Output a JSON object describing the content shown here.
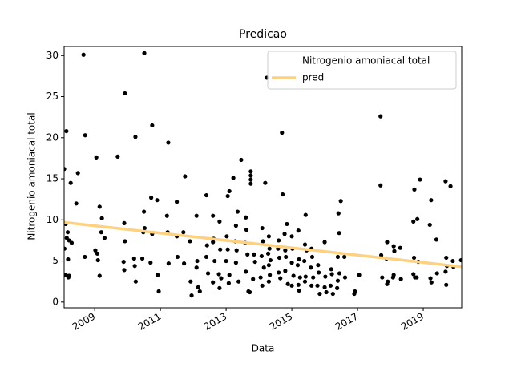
{
  "chart_data": {
    "type": "scatter",
    "title": "Predicao",
    "x_label": "Data",
    "y_label": "Nitrogenio amoniacal total",
    "xlim": [
      2008.07,
      2020.17
    ],
    "xticks": [
      2009,
      2011,
      2013,
      2015,
      2017,
      2019
    ],
    "ylim": [
      -0.7,
      31.1
    ],
    "yticks": [
      0,
      5,
      10,
      15,
      20,
      25,
      30
    ],
    "legend_position": "upper right",
    "series": [
      {
        "name": "Nitrogenio amoniacal total",
        "color": "#000000",
        "x": [
          2008.07,
          2008.14,
          2008.12,
          2008.18,
          2008.15,
          2008.22,
          2008.08,
          2008.12,
          2008.2,
          2008.22,
          2008.19,
          2008.3,
          2008.27,
          2008.44,
          2008.49,
          2008.66,
          2008.71,
          2008.7,
          2009.05,
          2009.02,
          2009.08,
          2009.1,
          2009.15,
          2009.15,
          2009.22,
          2009.2,
          2009.3,
          2009.7,
          2009.92,
          2009.9,
          2009.92,
          2009.88,
          2009.9,
          2010.24,
          2010.2,
          2010.22,
          2010.25,
          2010.51,
          2010.5,
          2010.52,
          2010.48,
          2010.45,
          2010.75,
          2010.72,
          2010.75,
          2010.7,
          2010.9,
          2010.92,
          2010.95,
          2011.24,
          2011.2,
          2011.22,
          2011.25,
          2011.5,
          2011.5,
          2011.52,
          2011.75,
          2011.7,
          2011.72,
          2011.9,
          2011.92,
          2011.95,
          2012.1,
          2012.12,
          2012.1,
          2012.15,
          2012.4,
          2012.42,
          2012.4,
          2012.45,
          2012.2,
          2012.6,
          2012.62,
          2012.6,
          2012.65,
          2012.6,
          2012.8,
          2012.82,
          2012.78,
          2012.85,
          2012.8,
          2013.05,
          2013.1,
          2013.02,
          2013.05,
          2013.0,
          2013.1,
          2013.08,
          2013.22,
          2013.46,
          2013.35,
          2013.3,
          2013.28,
          2013.32,
          2013.3,
          2013.38,
          2013.75,
          2013.75,
          2013.75,
          2013.75,
          2013.6,
          2013.62,
          2013.58,
          2013.65,
          2013.6,
          2013.68,
          2013.72,
          2013.85,
          2013.88,
          2013.82,
          2014.19,
          2014.24,
          2014.1,
          2014.12,
          2014.08,
          2014.15,
          2014.1,
          2014.05,
          2014.3,
          2014.32,
          2014.28,
          2014.35,
          2014.3,
          2014.33,
          2014.3,
          2014.6,
          2014.58,
          2014.62,
          2014.6,
          2014.65,
          2014.7,
          2014.72,
          2014.78,
          2014.85,
          2014.8,
          2014.82,
          2014.88,
          2014.8,
          2015.0,
          2015.02,
          2015.0,
          2015.05,
          2015.0,
          2015.2,
          2015.22,
          2015.18,
          2015.25,
          2015.2,
          2015.22,
          2015.42,
          2015.4,
          2015.45,
          2015.38,
          2015.42,
          2015.4,
          2015.6,
          2015.62,
          2015.58,
          2015.65,
          2015.6,
          2015.8,
          2015.82,
          2015.78,
          2015.85,
          2016.0,
          2016.02,
          2016.0,
          2016.05,
          2016.2,
          2016.22,
          2016.18,
          2016.25,
          2016.49,
          2016.42,
          2016.44,
          2016.4,
          2016.45,
          2016.4,
          2016.38,
          2016.6,
          2016.62,
          2016.9,
          2016.92,
          2017.05,
          2017.7,
          2017.7,
          2017.72,
          2017.75,
          2017.9,
          2017.88,
          2017.92,
          2017.9,
          2018.1,
          2018.12,
          2018.08,
          2018.1,
          2018.3,
          2018.32,
          2018.73,
          2018.7,
          2018.72,
          2018.7,
          2018.75,
          2018.9,
          2018.82,
          2018.85,
          2018.8,
          2019.24,
          2019.2,
          2019.22,
          2019.25,
          2019.4,
          2019.42,
          2019.68,
          2019.7,
          2019.72,
          2019.68,
          2019.7,
          2019.83,
          2019.9,
          2019.92,
          2020.15
        ],
        "values": [
          16.2,
          20.8,
          9.5,
          8.5,
          7.8,
          7.5,
          6.5,
          3.3,
          3.0,
          3.2,
          5.2,
          7.2,
          14.5,
          12.0,
          15.7,
          30.1,
          20.3,
          5.5,
          17.6,
          6.3,
          5.9,
          5.1,
          3.2,
          11.6,
          10.2,
          8.5,
          7.8,
          17.7,
          25.4,
          9.6,
          7.4,
          4.9,
          3.9,
          20.1,
          5.3,
          4.4,
          2.5,
          30.3,
          11.0,
          9.0,
          8.5,
          5.3,
          21.5,
          12.7,
          8.3,
          4.8,
          12.4,
          3.3,
          1.3,
          19.4,
          10.5,
          8.5,
          4.7,
          12.2,
          8.0,
          5.5,
          15.3,
          8.5,
          4.7,
          7.4,
          2.5,
          0.8,
          10.5,
          5.0,
          4.2,
          1.8,
          13.0,
          6.9,
          5.5,
          3.5,
          1.3,
          10.5,
          7.7,
          7.3,
          5.0,
          2.4,
          9.8,
          6.4,
          3.4,
          2.9,
          1.7,
          12.9,
          13.5,
          8.0,
          6.4,
          5.0,
          3.3,
          2.3,
          15.1,
          17.3,
          11.0,
          9.3,
          7.4,
          6.3,
          4.8,
          2.5,
          15.9,
          15.4,
          14.9,
          14.4,
          10.3,
          8.8,
          7.2,
          5.8,
          3.7,
          1.3,
          1.2,
          5.8,
          4.9,
          2.8,
          14.5,
          27.3,
          9.0,
          7.4,
          5.6,
          4.2,
          2.0,
          3.0,
          8.0,
          6.5,
          5.9,
          5.1,
          4.5,
          3.3,
          2.5,
          7.5,
          6.5,
          5.4,
          3.6,
          2.9,
          20.6,
          13.1,
          8.3,
          9.5,
          6.3,
          5.5,
          2.2,
          3.8,
          8.0,
          6.5,
          4.8,
          3.2,
          2.0,
          8.7,
          5.2,
          4.5,
          3.0,
          2.1,
          1.4,
          10.6,
          7.0,
          6.3,
          5.0,
          3.1,
          2.5,
          6.5,
          5.5,
          4.2,
          3.0,
          2.0,
          4.5,
          3.6,
          2.0,
          1.0,
          7.3,
          3.1,
          1.8,
          1.2,
          4.0,
          3.4,
          2.0,
          1.0,
          12.3,
          10.8,
          8.4,
          5.5,
          3.5,
          2.6,
          1.7,
          5.5,
          3.0,
          1.0,
          1.3,
          3.3,
          22.6,
          14.2,
          5.7,
          3.0,
          7.3,
          5.3,
          2.5,
          2.2,
          6.8,
          6.2,
          3.0,
          3.3,
          6.6,
          2.8,
          13.7,
          9.8,
          5.4,
          3.4,
          3.0,
          14.9,
          10.1,
          4.9,
          3.0,
          12.4,
          9.4,
          2.9,
          2.4,
          7.6,
          3.5,
          14.7,
          5.4,
          4.4,
          3.7,
          2.1,
          14.1,
          5.0,
          4.3,
          5.1
        ]
      },
      {
        "name": "pred",
        "type": "line",
        "color": "#fdd17f",
        "x": [
          2008.07,
          2020.17
        ],
        "values": [
          9.7,
          4.3
        ]
      }
    ]
  }
}
